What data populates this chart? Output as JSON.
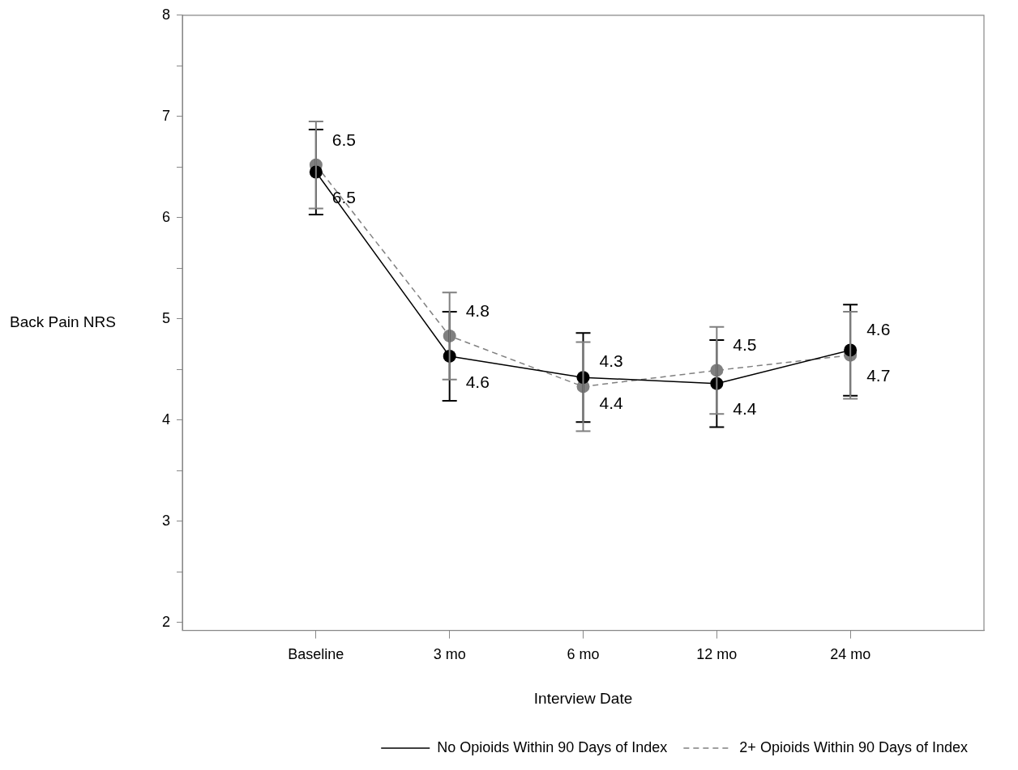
{
  "chart_data": {
    "type": "line",
    "xlabel": "Interview Date",
    "ylabel": "Back Pain NRS",
    "categories": [
      "Baseline",
      "3 mo",
      "6 mo",
      "12 mo",
      "24 mo"
    ],
    "ylim": [
      1.92,
      8
    ],
    "yticks": [
      2,
      {
        "value": 2.5,
        "label": null
      },
      3,
      {
        "value": 3.5,
        "label": null
      },
      4,
      {
        "value": 4.5,
        "label": null
      },
      5,
      {
        "value": 5.5,
        "label": null
      },
      6,
      {
        "value": 6.5,
        "label": null
      },
      7,
      {
        "value": 7.5,
        "label": null
      },
      8
    ],
    "grid": false,
    "legend": "bottom",
    "marker": "circle",
    "series": [
      {
        "name": "No Opioids Within 90 Days of Index",
        "color": "#000000",
        "line_style": "solid",
        "values": [
          6.45,
          4.63,
          4.42,
          4.36,
          4.69
        ],
        "errors": [
          0.42,
          0.44,
          0.44,
          0.43,
          0.45
        ],
        "value_labels": [
          "6.5",
          "4.6",
          "4.4",
          "4.4",
          "4.7"
        ]
      },
      {
        "name": "2+ Opioids Within 90 Days of Index",
        "color": "#808080",
        "line_style": "dashed",
        "values": [
          6.52,
          4.83,
          4.33,
          4.49,
          4.64
        ],
        "errors": [
          0.43,
          0.43,
          0.44,
          0.43,
          0.43
        ],
        "value_labels": [
          "6.5",
          "4.8",
          "4.3",
          "4.5",
          "4.6"
        ]
      }
    ]
  }
}
